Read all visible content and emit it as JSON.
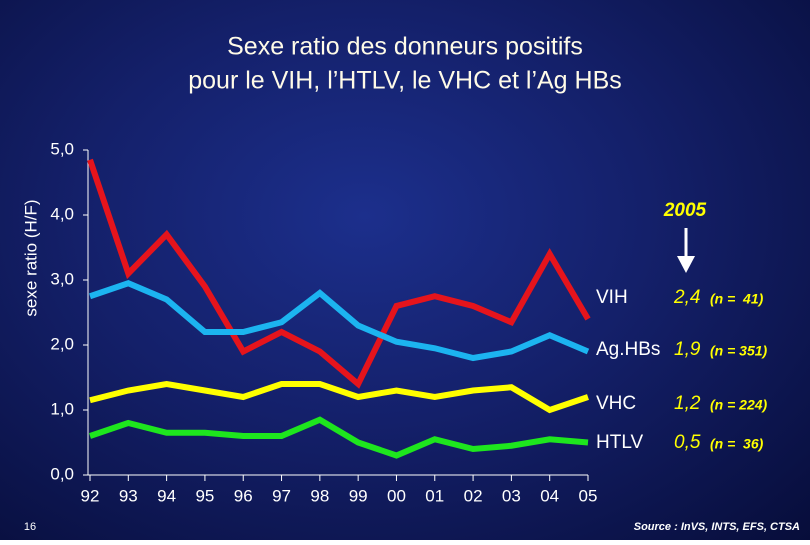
{
  "chart_data": {
    "type": "line",
    "title": [
      "Sexe ratio des donneurs positifs",
      "pour le VIH, l’HTLV, le VHC et l’Ag HBs"
    ],
    "y_label": "sexe ratio (H/F)",
    "annotation": "2005",
    "page_number": "16",
    "source": "Source : InVS, INTS, EFS, CTSA",
    "categories": [
      "92",
      "93",
      "94",
      "95",
      "96",
      "97",
      "98",
      "99",
      "00",
      "01",
      "02",
      "03",
      "04",
      "05"
    ],
    "ylim": [
      0,
      5
    ],
    "yticks": [
      {
        "value": 0,
        "label": "0,0"
      },
      {
        "value": 1,
        "label": "1,0"
      },
      {
        "value": 2,
        "label": "2,0"
      },
      {
        "value": 3,
        "label": "3,0"
      },
      {
        "value": 4,
        "label": "4,0"
      },
      {
        "value": 5,
        "label": "5,0"
      }
    ],
    "series": [
      {
        "name": "VIH",
        "color": "#e5141c",
        "summary": "2,4",
        "count": "(n =  41)",
        "values": [
          4.85,
          3.1,
          3.7,
          2.9,
          1.9,
          2.2,
          1.9,
          1.4,
          2.6,
          2.75,
          2.6,
          2.35,
          3.4,
          2.4
        ]
      },
      {
        "name": "Ag.HBs",
        "color": "#1cb4f0",
        "summary": "1,9",
        "count": "(n = 351)",
        "values": [
          2.75,
          2.95,
          2.7,
          2.2,
          2.2,
          2.35,
          2.8,
          2.3,
          2.05,
          1.95,
          1.8,
          1.9,
          2.15,
          1.9
        ]
      },
      {
        "name": "VHC",
        "color": "#ffff00",
        "summary": "1,2",
        "count": "(n = 224)",
        "values": [
          1.15,
          1.3,
          1.4,
          1.3,
          1.2,
          1.4,
          1.4,
          1.2,
          1.3,
          1.2,
          1.3,
          1.35,
          1.0,
          1.2
        ]
      },
      {
        "name": "HTLV",
        "color": "#1ee61e",
        "summary": "0,5",
        "count": "(n =  36)",
        "values": [
          0.6,
          0.8,
          0.65,
          0.65,
          0.6,
          0.6,
          0.85,
          0.5,
          0.3,
          0.55,
          0.4,
          0.45,
          0.55,
          0.5
        ]
      }
    ]
  }
}
